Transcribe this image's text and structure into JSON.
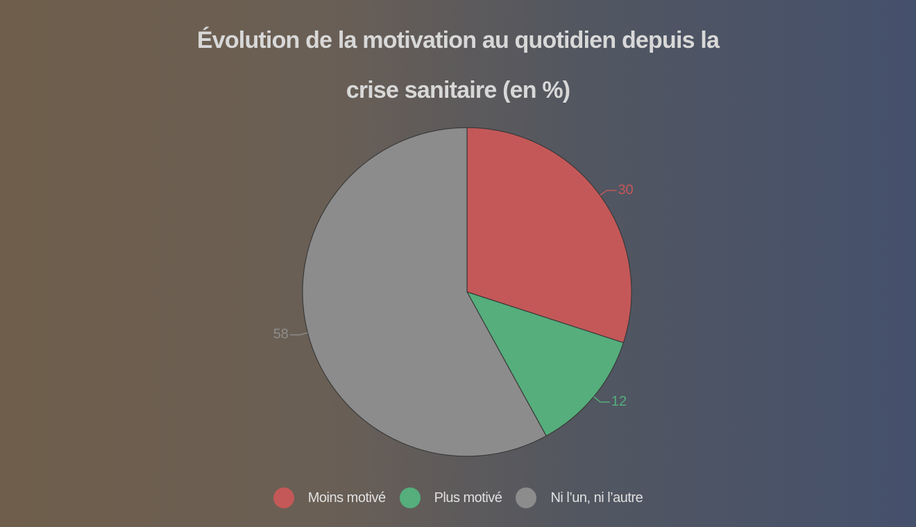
{
  "chart_data": {
    "type": "pie",
    "title": "Évolution de la motivation au quotidien depuis la crise sanitaire (en %)",
    "categories": [
      "Moins motivé",
      "Plus motivé",
      "Ni l’un, ni l’autre"
    ],
    "values": [
      30,
      12,
      58
    ],
    "colors": [
      "#c45858",
      "#55ae7c",
      "#8c8c8c"
    ]
  }
}
